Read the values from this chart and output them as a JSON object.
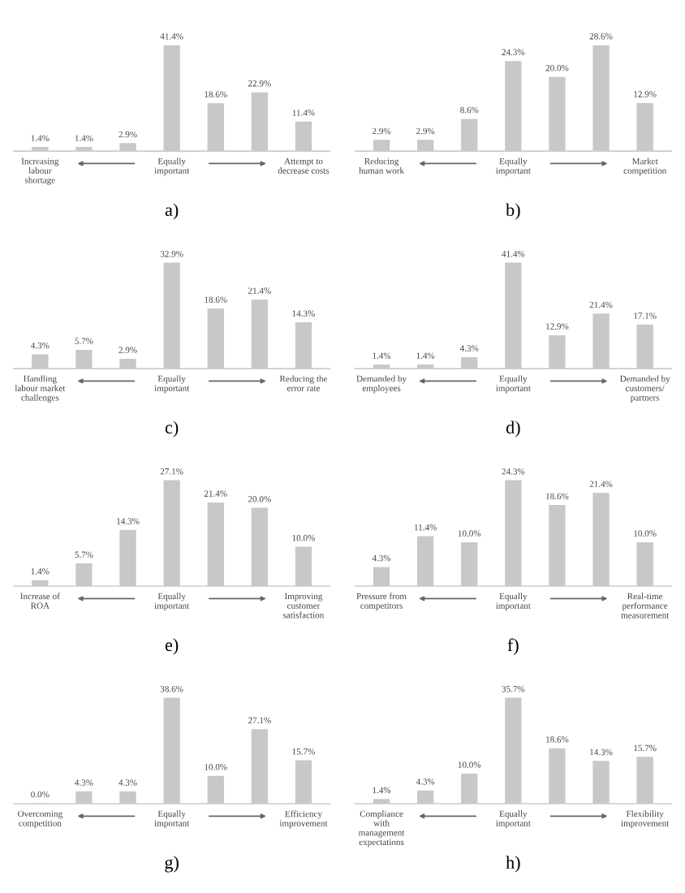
{
  "chart_data": [
    {
      "type": "bar",
      "xlabel": "a)",
      "categories": [
        "Increasing\nlabour\nshortage",
        null,
        null,
        "Equally\nimportant",
        null,
        null,
        "Attempt to\ndecrease costs"
      ],
      "values": [
        1.4,
        1.4,
        2.9,
        41.4,
        18.6,
        22.9,
        11.4
      ],
      "value_labels": [
        "1.4%",
        "1.4%",
        "2.9%",
        "41.4%",
        "18.6%",
        "22.9%",
        "11.4%"
      ],
      "color": "#c8c8c8"
    },
    {
      "type": "bar",
      "xlabel": "b)",
      "categories": [
        "Reducing\nhuman work",
        null,
        null,
        "Equally\nimportant",
        null,
        null,
        "Market\ncompetition"
      ],
      "values": [
        2.9,
        2.9,
        8.6,
        24.3,
        20.0,
        28.6,
        12.9
      ],
      "value_labels": [
        "2.9%",
        "2.9%",
        "8.6%",
        "24.3%",
        "20.0%",
        "28.6%",
        "12.9%"
      ],
      "color": "#c8c8c8"
    },
    {
      "type": "bar",
      "xlabel": "c)",
      "categories": [
        "Handling\nlabour market\nchallenges",
        null,
        null,
        "Equally\nimportant",
        null,
        null,
        "Reducing the\nerror rate"
      ],
      "values": [
        4.3,
        5.7,
        2.9,
        32.9,
        18.6,
        21.4,
        14.3
      ],
      "value_labels": [
        "4.3%",
        "5.7%",
        "2.9%",
        "32.9%",
        "18.6%",
        "21.4%",
        "14.3%"
      ],
      "color": "#c8c8c8"
    },
    {
      "type": "bar",
      "xlabel": "d)",
      "categories": [
        "Demanded by\nemployees",
        null,
        null,
        "Equally\nimportant",
        null,
        null,
        "Demanded by\ncustomers/\npartners"
      ],
      "values": [
        1.4,
        1.4,
        4.3,
        41.4,
        12.9,
        21.4,
        17.1
      ],
      "value_labels": [
        "1.4%",
        "1.4%",
        "4.3%",
        "41.4%",
        "12.9%",
        "21.4%",
        "17.1%"
      ],
      "color": "#c8c8c8"
    },
    {
      "type": "bar",
      "xlabel": "e)",
      "categories": [
        "Increase of\nROA",
        null,
        null,
        "Equally\nimportant",
        null,
        null,
        "Improving\ncustomer\nsatisfaction"
      ],
      "values": [
        1.4,
        5.7,
        14.3,
        27.1,
        21.4,
        20.0,
        10.0
      ],
      "value_labels": [
        "1.4%",
        "5.7%",
        "14.3%",
        "27.1%",
        "21.4%",
        "20.0%",
        "10.0%"
      ],
      "color": "#c8c8c8"
    },
    {
      "type": "bar",
      "xlabel": "f)",
      "categories": [
        "Pressure from\ncompetitors",
        null,
        null,
        "Equally\nimportant",
        null,
        null,
        "Real-time\nperformance\nmeasurement"
      ],
      "values": [
        4.3,
        11.4,
        10.0,
        24.3,
        18.6,
        21.4,
        10.0
      ],
      "value_labels": [
        "4.3%",
        "11.4%",
        "10.0%",
        "24.3%",
        "18.6%",
        "21.4%",
        "10.0%"
      ],
      "color": "#c8c8c8"
    },
    {
      "type": "bar",
      "xlabel": "g)",
      "categories": [
        "Overcoming\ncompetition",
        null,
        null,
        "Equally\nimportant",
        null,
        null,
        "Efficiency\nimprovement"
      ],
      "values": [
        0.0,
        4.3,
        4.3,
        38.6,
        10.0,
        27.1,
        15.7
      ],
      "value_labels": [
        "0.0%",
        "4.3%",
        "4.3%",
        "38.6%",
        "10.0%",
        "27.1%",
        "15.7%"
      ],
      "color": "#c8c8c8"
    },
    {
      "type": "bar",
      "xlabel": "h)",
      "categories": [
        "Compliance\nwith\nmanagement\nexpectations",
        null,
        null,
        "Equally\nimportant",
        null,
        null,
        "Flexibility\nimprovement"
      ],
      "values": [
        1.4,
        4.3,
        10.0,
        35.7,
        18.6,
        14.3,
        15.7
      ],
      "value_labels": [
        "1.4%",
        "4.3%",
        "10.0%",
        "35.7%",
        "18.6%",
        "14.3%",
        "15.7%"
      ],
      "color": "#c8c8c8"
    }
  ]
}
